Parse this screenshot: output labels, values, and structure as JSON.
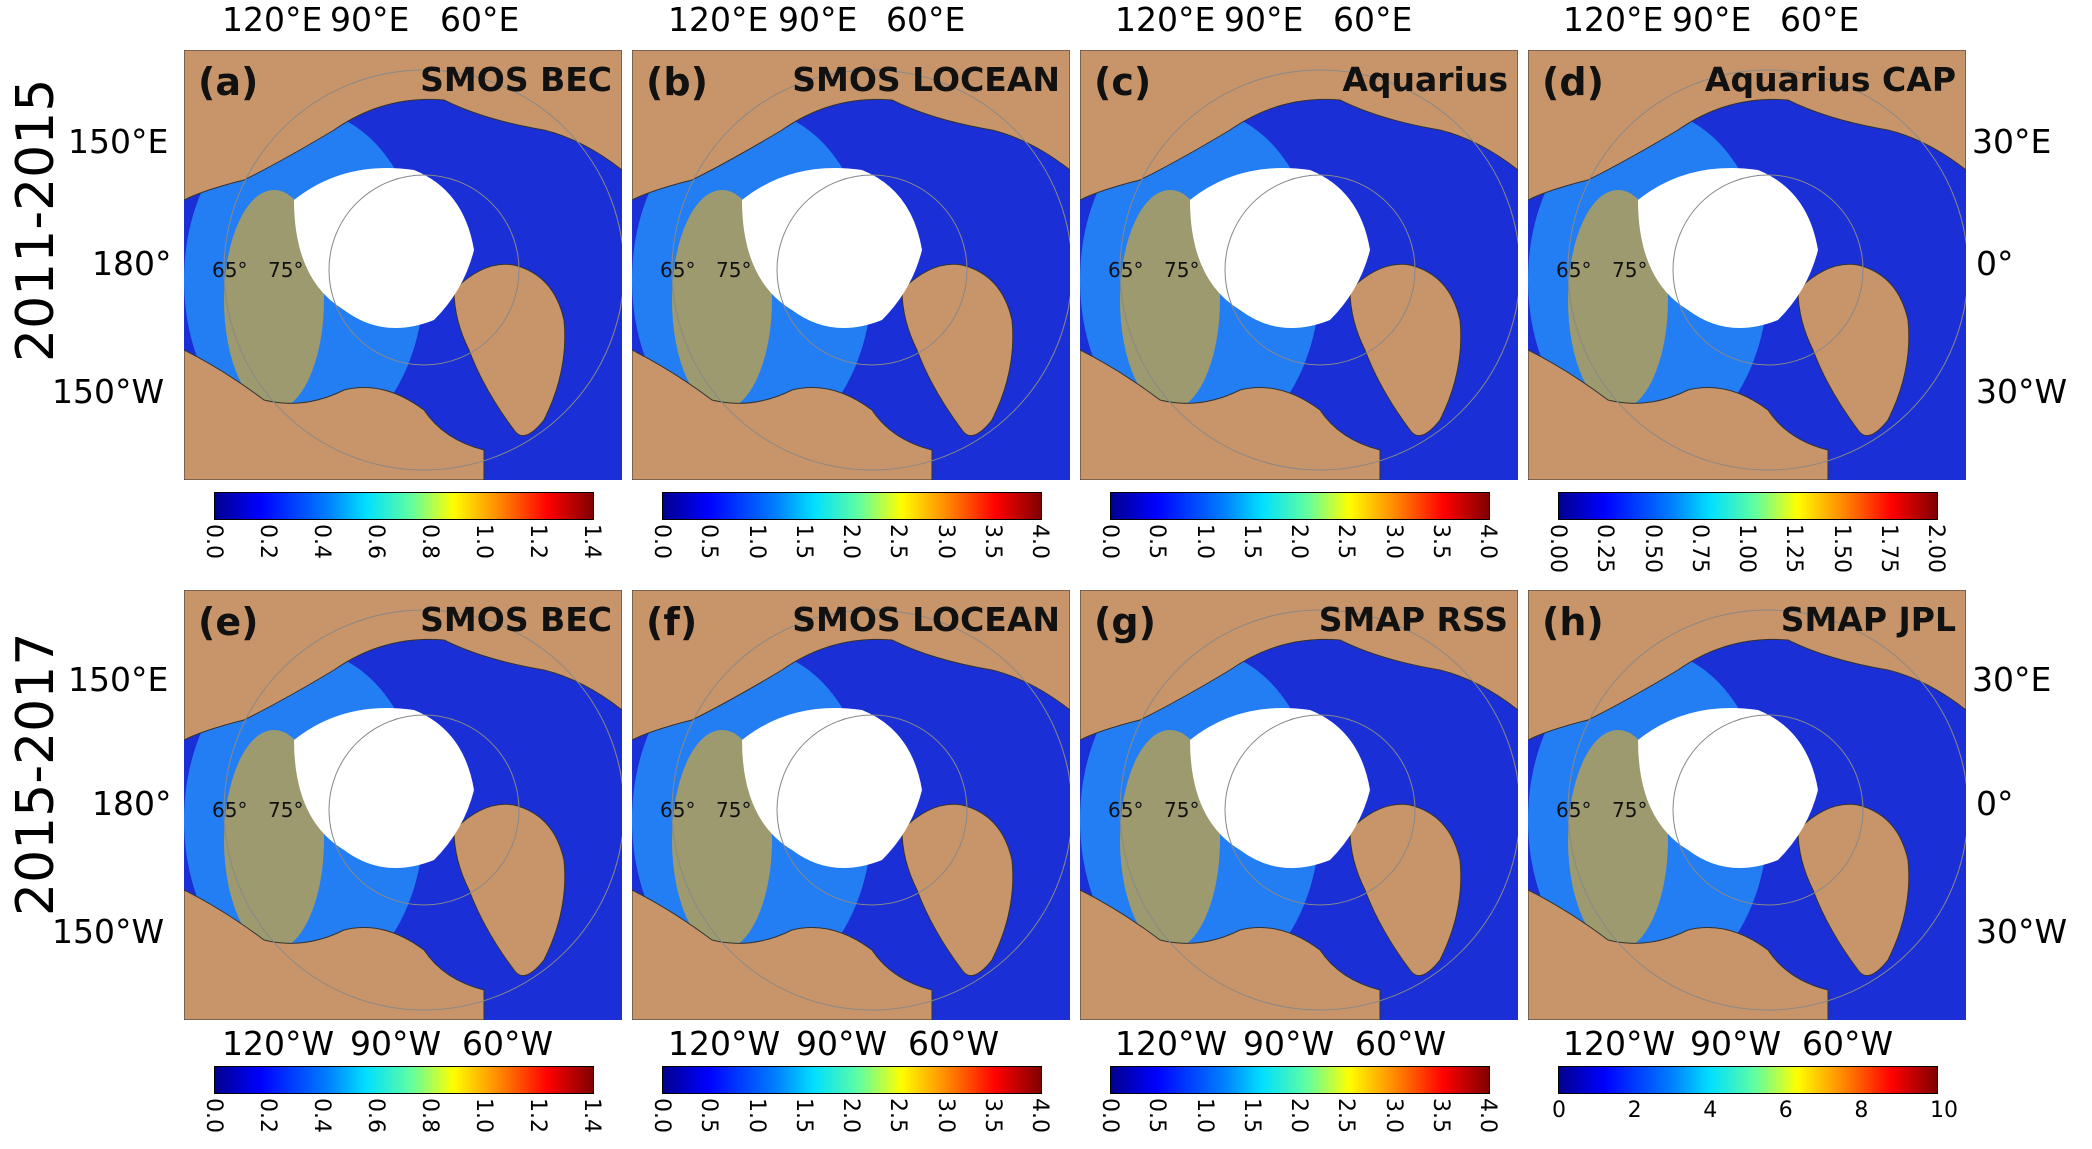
{
  "row_labels": [
    "2011-2015",
    "2015-2017"
  ],
  "top_longitudes": [
    "120°E",
    "90°E",
    "60°E"
  ],
  "bottom_longitudes": [
    "120°W",
    "90°W",
    "60°W"
  ],
  "left_latitudes": [
    "150°E",
    "180°",
    "150°W"
  ],
  "right_latitudes": [
    "30°E",
    "0°",
    "30°W"
  ],
  "inner_latitudes": [
    "65°",
    "75°"
  ],
  "panels": [
    {
      "label": "(a)",
      "title": "SMOS BEC"
    },
    {
      "label": "(b)",
      "title": "SMOS LOCEAN"
    },
    {
      "label": "(c)",
      "title": "Aquarius"
    },
    {
      "label": "(d)",
      "title": "Aquarius CAP"
    },
    {
      "label": "(e)",
      "title": "SMOS BEC"
    },
    {
      "label": "(f)",
      "title": "SMOS LOCEAN"
    },
    {
      "label": "(g)",
      "title": "SMAP RSS"
    },
    {
      "label": "(h)",
      "title": "SMAP JPL"
    }
  ],
  "colorbars": [
    [
      "0.0",
      "0.2",
      "0.4",
      "0.6",
      "0.8",
      "1.0",
      "1.2",
      "1.4"
    ],
    [
      "0.0",
      "0.5",
      "1.0",
      "1.5",
      "2.0",
      "2.5",
      "3.0",
      "3.5",
      "4.0"
    ],
    [
      "0.0",
      "0.5",
      "1.0",
      "1.5",
      "2.0",
      "2.5",
      "3.0",
      "3.5",
      "4.0"
    ],
    [
      "0.00",
      "0.25",
      "0.50",
      "0.75",
      "1.00",
      "1.25",
      "1.50",
      "1.75",
      "2.00"
    ],
    [
      "0.0",
      "0.2",
      "0.4",
      "0.6",
      "0.8",
      "1.0",
      "1.2",
      "1.4"
    ],
    [
      "0.0",
      "0.5",
      "1.0",
      "1.5",
      "2.0",
      "2.5",
      "3.0",
      "3.5",
      "4.0"
    ],
    [
      "0.0",
      "0.5",
      "1.0",
      "1.5",
      "2.0",
      "2.5",
      "3.0",
      "3.5",
      "4.0"
    ],
    [
      "0",
      "2",
      "4",
      "6",
      "8",
      "10"
    ]
  ],
  "colors": {
    "land": "#c8956a",
    "ocean_low": "#1a2fd6",
    "ice": "#ffffff"
  }
}
